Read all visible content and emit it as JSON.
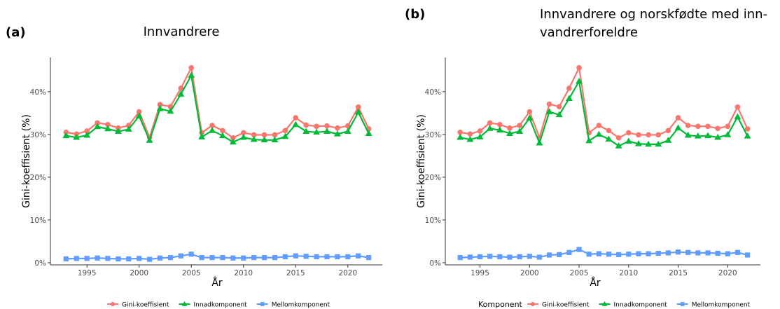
{
  "colors": {
    "gini": "#F8766D",
    "innad": "#00BA38",
    "mellom": "#619CFF",
    "axis": "#333333",
    "tick_text": "#4D4D4D"
  },
  "legend": {
    "title": "Komponent",
    "entries": [
      "Gini-koeffisient",
      "Innadkomponent",
      "Mellomkomponent"
    ],
    "placement": "bottom"
  },
  "chart_data": [
    {
      "type": "line",
      "panel_label": "(a)",
      "title": "Innvandrere",
      "xlabel": "År",
      "ylabel": "Gini-koeffisient (%)",
      "xlim": [
        1991.5,
        2023.3
      ],
      "ylim": [
        -0.5,
        48
      ],
      "x_ticks": [
        1995,
        2000,
        2005,
        2010,
        2015,
        2020
      ],
      "y_ticks": [
        0,
        10,
        20,
        30,
        40
      ],
      "y_tick_labels": [
        "0%",
        "10%",
        "20%",
        "30%",
        "40%"
      ],
      "grid": false,
      "x": [
        1993,
        1994,
        1995,
        1996,
        1997,
        1998,
        1999,
        2000,
        2001,
        2002,
        2003,
        2004,
        2005,
        2006,
        2007,
        2008,
        2009,
        2010,
        2011,
        2012,
        2013,
        2014,
        2015,
        2016,
        2017,
        2018,
        2019,
        2020,
        2021,
        2022
      ],
      "series": [
        {
          "name": "Gini-koeffisient",
          "marker": "circle",
          "values": [
            30.5,
            30.1,
            30.8,
            32.7,
            32.3,
            31.5,
            32.1,
            35.3,
            29.3,
            37.0,
            36.5,
            40.8,
            45.6,
            30.4,
            32.1,
            30.9,
            29.2,
            30.4,
            29.9,
            29.9,
            29.9,
            30.9,
            33.9,
            32.2,
            31.9,
            32.0,
            31.5,
            32.0,
            36.4,
            31.3
          ]
        },
        {
          "name": "Innadkomponent",
          "marker": "triangle",
          "values": [
            29.7,
            29.3,
            29.8,
            31.8,
            31.3,
            30.7,
            31.2,
            34.3,
            28.6,
            36.0,
            35.4,
            39.4,
            43.8,
            29.4,
            30.9,
            29.7,
            28.2,
            29.3,
            28.8,
            28.7,
            28.7,
            29.5,
            32.3,
            30.7,
            30.5,
            30.7,
            30.1,
            30.7,
            35.2,
            30.2
          ]
        },
        {
          "name": "Mellomkomponent",
          "marker": "square",
          "values": [
            0.9,
            1.0,
            1.0,
            1.1,
            1.0,
            0.9,
            0.9,
            1.0,
            0.8,
            1.1,
            1.2,
            1.6,
            2.0,
            1.2,
            1.2,
            1.2,
            1.1,
            1.1,
            1.2,
            1.2,
            1.2,
            1.4,
            1.6,
            1.5,
            1.4,
            1.4,
            1.4,
            1.4,
            1.6,
            1.2
          ]
        }
      ]
    },
    {
      "type": "line",
      "panel_label": "(b)",
      "title": [
        "Innvandrere og norskfødte med inn-",
        "vandrerforeldre"
      ],
      "xlabel": "År",
      "ylabel": "Gini-koeffisient (%)",
      "xlim": [
        1991.5,
        2023.3
      ],
      "ylim": [
        -0.5,
        48
      ],
      "x_ticks": [
        1995,
        2000,
        2005,
        2010,
        2015,
        2020
      ],
      "y_ticks": [
        0,
        10,
        20,
        30,
        40
      ],
      "y_tick_labels": [
        "0%",
        "10%",
        "20%",
        "30%",
        "40%"
      ],
      "grid": false,
      "x": [
        1993,
        1994,
        1995,
        1996,
        1997,
        1998,
        1999,
        2000,
        2001,
        2002,
        2003,
        2004,
        2005,
        2006,
        2007,
        2008,
        2009,
        2010,
        2011,
        2012,
        2013,
        2014,
        2015,
        2016,
        2017,
        2018,
        2019,
        2020,
        2021,
        2022
      ],
      "series": [
        {
          "name": "Gini-koeffisient",
          "marker": "circle",
          "values": [
            30.5,
            30.1,
            30.8,
            32.7,
            32.3,
            31.5,
            32.1,
            35.3,
            29.3,
            37.1,
            36.5,
            40.8,
            45.6,
            30.4,
            32.1,
            30.9,
            29.2,
            30.4,
            29.9,
            29.9,
            29.9,
            30.9,
            33.9,
            32.1,
            31.9,
            31.9,
            31.4,
            31.9,
            36.4,
            31.3
          ]
        },
        {
          "name": "Innadkomponent",
          "marker": "triangle",
          "values": [
            29.3,
            28.8,
            29.4,
            31.4,
            31.0,
            30.2,
            30.7,
            33.8,
            28.0,
            35.3,
            34.6,
            38.4,
            42.4,
            28.5,
            30.0,
            28.9,
            27.3,
            28.4,
            27.8,
            27.7,
            27.7,
            28.6,
            31.5,
            29.8,
            29.6,
            29.7,
            29.3,
            29.9,
            34.1,
            29.6
          ]
        },
        {
          "name": "Mellomkomponent",
          "marker": "square",
          "values": [
            1.2,
            1.3,
            1.4,
            1.5,
            1.4,
            1.3,
            1.4,
            1.5,
            1.3,
            1.8,
            1.9,
            2.4,
            3.1,
            2.0,
            2.1,
            2.0,
            1.9,
            2.0,
            2.1,
            2.1,
            2.2,
            2.3,
            2.5,
            2.4,
            2.3,
            2.3,
            2.2,
            2.1,
            2.4,
            1.8
          ]
        }
      ]
    }
  ]
}
